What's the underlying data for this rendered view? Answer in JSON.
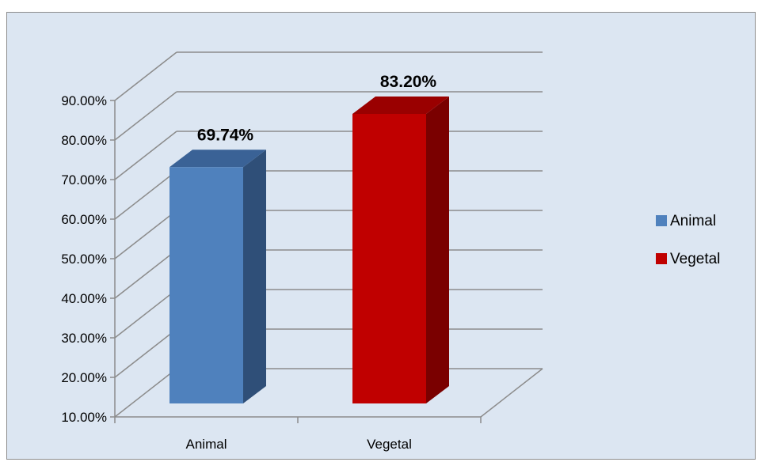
{
  "chart_data": {
    "type": "bar",
    "style": "3d-column",
    "categories": [
      "Animal",
      "Vegetal"
    ],
    "values": [
      69.74,
      83.2
    ],
    "value_unit": "%",
    "data_labels": [
      "69.74%",
      "83.20%"
    ],
    "title": "",
    "xlabel": "",
    "ylabel": "",
    "ylim": [
      10,
      90
    ],
    "y_ticks": [
      "10.00%",
      "20.00%",
      "30.00%",
      "40.00%",
      "50.00%",
      "60.00%",
      "70.00%",
      "80.00%",
      "90.00%"
    ],
    "grid": true,
    "legend_position": "right",
    "legend": [
      "Animal",
      "Vegetal"
    ],
    "colors": {
      "Animal": {
        "front": "#4f81bd",
        "side": "#2f4f78",
        "top": "#3a6296"
      },
      "Vegetal": {
        "front": "#c00000",
        "side": "#7a0000",
        "top": "#9a0000"
      },
      "background": "#dce6f2",
      "grid": "#8c8c8c"
    }
  }
}
